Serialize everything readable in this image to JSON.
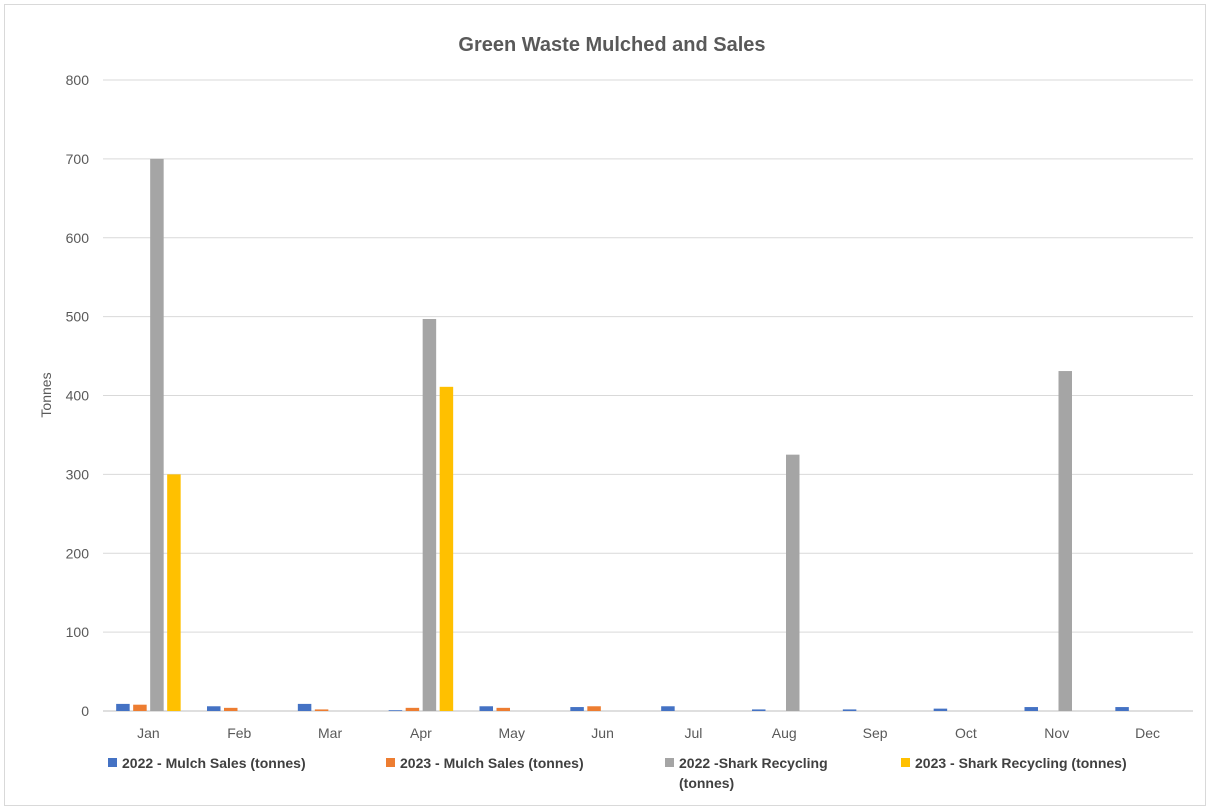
{
  "chart_data": {
    "type": "bar",
    "title": "Green Waste Mulched and Sales",
    "ylabel": "Tonnes",
    "xlabel": "",
    "ylim": [
      0,
      800
    ],
    "yticks": [
      0,
      100,
      200,
      300,
      400,
      500,
      600,
      700,
      800
    ],
    "grid": true,
    "legend_position": "bottom",
    "categories": [
      "Jan",
      "Feb",
      "Mar",
      "Apr",
      "May",
      "Jun",
      "Jul",
      "Aug",
      "Sep",
      "Oct",
      "Nov",
      "Dec"
    ],
    "series": [
      {
        "name": "2022 - Mulch Sales (tonnes)",
        "legend_lines": [
          "2022 - Mulch Sales (tonnes)"
        ],
        "color": "#4472c4",
        "values": [
          9,
          6,
          9,
          1,
          6,
          5,
          6,
          2,
          2,
          3,
          5,
          5
        ]
      },
      {
        "name": "2023 - Mulch Sales (tonnes)",
        "legend_lines": [
          "2023 - Mulch Sales (tonnes)"
        ],
        "color": "#ed7d31",
        "values": [
          8,
          4,
          2,
          4,
          4,
          6,
          0,
          0,
          0,
          0,
          0,
          0
        ]
      },
      {
        "name": "2022 -Shark Recycling (tonnes)",
        "legend_lines": [
          "2022 -Shark Recycling",
          "(tonnes)"
        ],
        "color": "#a5a5a5",
        "values": [
          700,
          0,
          0,
          497,
          0,
          0,
          0,
          325,
          0,
          0,
          431,
          0
        ]
      },
      {
        "name": "2023 - Shark Recycling (tonnes)",
        "legend_lines": [
          "2023 - Shark Recycling (tonnes)"
        ],
        "color": "#ffc000",
        "values": [
          300,
          0,
          0,
          411,
          0,
          0,
          0,
          0,
          0,
          0,
          0,
          0
        ]
      }
    ]
  }
}
